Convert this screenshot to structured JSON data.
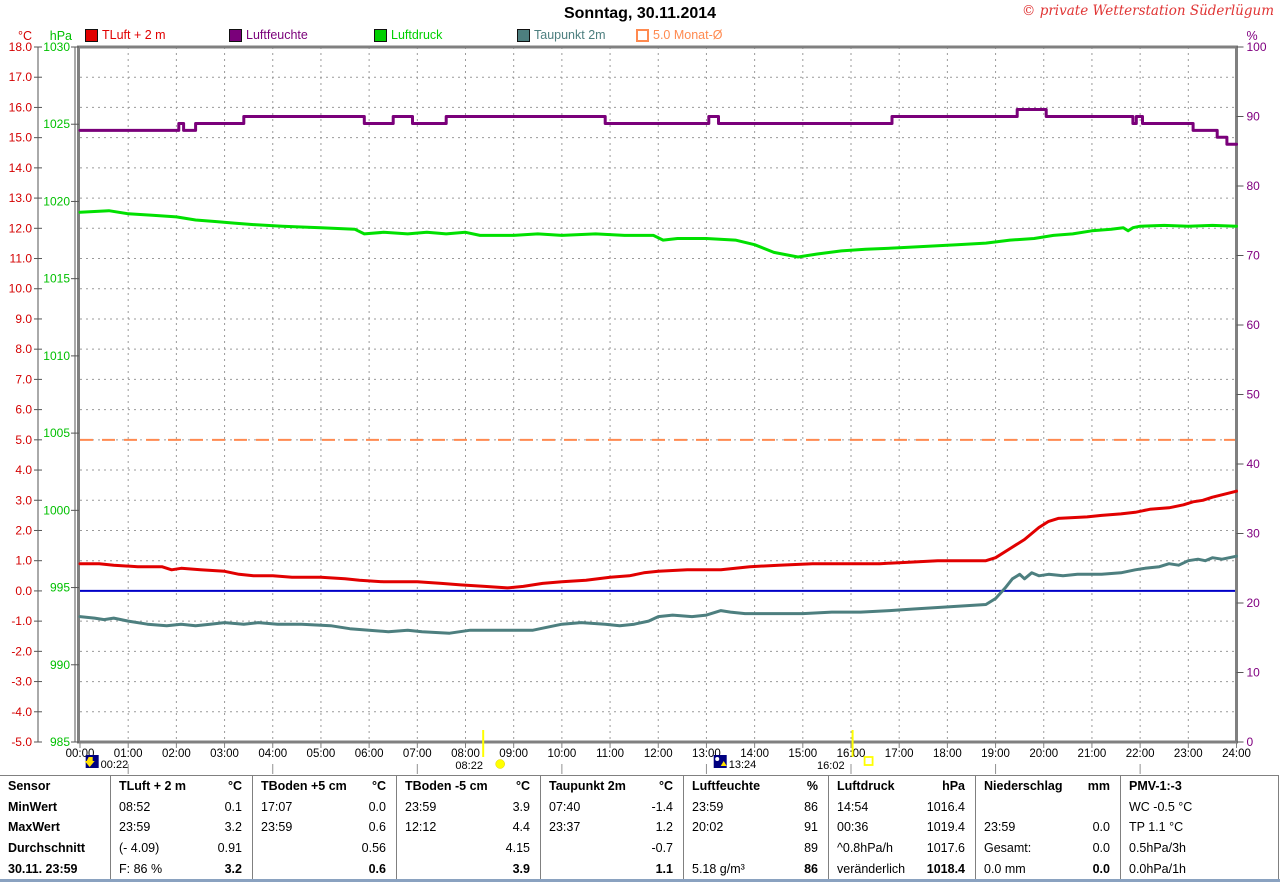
{
  "header": {
    "title": "Sonntag, 30.11.2014",
    "copyright": "© private Wetterstation Süderlügum"
  },
  "legend": [
    {
      "label": "TLuft + 2 m",
      "color": "#e10000",
      "swatch": "filled"
    },
    {
      "label": "Luftfeuchte",
      "color": "#7a007a",
      "swatch": "filled"
    },
    {
      "label": "Luftdruck",
      "color": "#00d000",
      "swatch": "filled"
    },
    {
      "label": "Taupunkt 2m",
      "color": "#4d7f7f",
      "swatch": "filled"
    },
    {
      "label": "5.0 Monat-Ø",
      "color": "#ff8a50",
      "swatch": "hollow"
    }
  ],
  "chart_data": {
    "type": "line",
    "x_axis": {
      "min": 0,
      "max": 24,
      "step_hours": 1,
      "labels": [
        "00:00",
        "01:00",
        "02:00",
        "03:00",
        "04:00",
        "05:00",
        "06:00",
        "07:00",
        "08:00",
        "09:00",
        "10:00",
        "11:00",
        "12:00",
        "13:00",
        "14:00",
        "15:00",
        "16:00",
        "17:00",
        "18:00",
        "19:00",
        "20:00",
        "21:00",
        "22:00",
        "23:00",
        "24:00"
      ]
    },
    "y_axis_celsius": {
      "label": "°C",
      "min": -5,
      "max": 18,
      "step": 1,
      "color": "#d40000"
    },
    "y_axis_hpa": {
      "label": "hPa",
      "min": 985,
      "max": 1030,
      "step": 5,
      "color": "#00c000"
    },
    "y_axis_percent": {
      "label": "%",
      "min": 0,
      "max": 100,
      "step": 10,
      "color": "#800080"
    },
    "grid": {
      "on": true,
      "color": "#9a9a9a"
    },
    "reference_lines": [
      {
        "name": "zero-line",
        "axis": "c",
        "value": 0.0,
        "color": "#0000c8",
        "style": "solid"
      },
      {
        "name": "monthly-average",
        "axis": "c",
        "value": 5.0,
        "color": "#ff8a50",
        "style": "dashed",
        "label": "5.0 Monat-Ø"
      }
    ],
    "series": [
      {
        "name": "Luftdruck",
        "axis": "hpa",
        "color": "#00e000",
        "interp": "linear",
        "points": [
          [
            0,
            1019.3
          ],
          [
            0.6,
            1019.4
          ],
          [
            1,
            1019.2
          ],
          [
            1.5,
            1019.1
          ],
          [
            2,
            1019.0
          ],
          [
            2.4,
            1018.8
          ],
          [
            2.8,
            1018.7
          ],
          [
            3.2,
            1018.6
          ],
          [
            3.6,
            1018.5
          ],
          [
            4.2,
            1018.4
          ],
          [
            5,
            1018.3
          ],
          [
            5.7,
            1018.2
          ],
          [
            5.9,
            1017.9
          ],
          [
            6.3,
            1018.0
          ],
          [
            6.8,
            1017.9
          ],
          [
            7.2,
            1018.0
          ],
          [
            7.6,
            1017.9
          ],
          [
            8,
            1018.0
          ],
          [
            8.3,
            1017.8
          ],
          [
            9,
            1017.8
          ],
          [
            9.5,
            1017.9
          ],
          [
            10,
            1017.8
          ],
          [
            10.7,
            1017.9
          ],
          [
            11.3,
            1017.8
          ],
          [
            11.9,
            1017.8
          ],
          [
            12.1,
            1017.5
          ],
          [
            12.4,
            1017.6
          ],
          [
            13,
            1017.6
          ],
          [
            13.6,
            1017.5
          ],
          [
            14,
            1017.2
          ],
          [
            14.4,
            1016.7
          ],
          [
            14.9,
            1016.4
          ],
          [
            15.3,
            1016.6
          ],
          [
            15.8,
            1016.8
          ],
          [
            16.3,
            1016.9
          ],
          [
            17,
            1017.0
          ],
          [
            17.6,
            1017.1
          ],
          [
            18.2,
            1017.2
          ],
          [
            18.8,
            1017.3
          ],
          [
            19.3,
            1017.5
          ],
          [
            19.8,
            1017.6
          ],
          [
            20.2,
            1017.8
          ],
          [
            20.6,
            1017.9
          ],
          [
            21,
            1018.1
          ],
          [
            21.4,
            1018.2
          ],
          [
            21.65,
            1018.3
          ],
          [
            21.75,
            1018.1
          ],
          [
            21.85,
            1018.3
          ],
          [
            22,
            1018.4
          ],
          [
            22.5,
            1018.45
          ],
          [
            23,
            1018.4
          ],
          [
            23.5,
            1018.45
          ],
          [
            24,
            1018.4
          ]
        ]
      },
      {
        "name": "Luftfeuchte",
        "axis": "pct",
        "color": "#7a007a",
        "interp": "step",
        "points": [
          [
            0,
            88
          ],
          [
            2.0,
            88
          ],
          [
            2.05,
            89
          ],
          [
            2.15,
            88
          ],
          [
            2.4,
            89
          ],
          [
            3.4,
            90
          ],
          [
            5.9,
            89
          ],
          [
            6.5,
            90
          ],
          [
            6.9,
            89
          ],
          [
            7.6,
            90
          ],
          [
            10.9,
            89
          ],
          [
            13.05,
            90
          ],
          [
            13.25,
            89
          ],
          [
            16.85,
            90
          ],
          [
            19.45,
            91
          ],
          [
            20.05,
            90
          ],
          [
            21.85,
            89
          ],
          [
            21.92,
            90
          ],
          [
            22.05,
            89
          ],
          [
            23.1,
            88
          ],
          [
            23.6,
            87
          ],
          [
            23.8,
            86
          ],
          [
            24,
            86
          ]
        ]
      },
      {
        "name": "TLuft + 2 m",
        "axis": "c",
        "color": "#e10000",
        "interp": "linear",
        "points": [
          [
            0,
            0.9
          ],
          [
            0.4,
            0.9
          ],
          [
            0.7,
            0.85
          ],
          [
            1.2,
            0.8
          ],
          [
            1.7,
            0.8
          ],
          [
            1.9,
            0.7
          ],
          [
            2.1,
            0.75
          ],
          [
            2.5,
            0.7
          ],
          [
            3,
            0.65
          ],
          [
            3.3,
            0.55
          ],
          [
            3.6,
            0.5
          ],
          [
            4,
            0.5
          ],
          [
            4.4,
            0.45
          ],
          [
            5,
            0.45
          ],
          [
            5.5,
            0.4
          ],
          [
            5.8,
            0.35
          ],
          [
            6.3,
            0.3
          ],
          [
            7,
            0.3
          ],
          [
            7.5,
            0.25
          ],
          [
            7.9,
            0.2
          ],
          [
            8.4,
            0.15
          ],
          [
            8.87,
            0.1
          ],
          [
            9.2,
            0.15
          ],
          [
            9.6,
            0.25
          ],
          [
            10,
            0.3
          ],
          [
            10.5,
            0.35
          ],
          [
            11,
            0.45
          ],
          [
            11.4,
            0.5
          ],
          [
            11.7,
            0.6
          ],
          [
            12,
            0.65
          ],
          [
            12.6,
            0.7
          ],
          [
            13.3,
            0.7
          ],
          [
            13.6,
            0.75
          ],
          [
            13.9,
            0.8
          ],
          [
            14.5,
            0.85
          ],
          [
            15.2,
            0.9
          ],
          [
            16,
            0.9
          ],
          [
            16.6,
            0.9
          ],
          [
            17.2,
            0.95
          ],
          [
            17.8,
            1.0
          ],
          [
            18.8,
            1.0
          ],
          [
            19,
            1.1
          ],
          [
            19.3,
            1.4
          ],
          [
            19.6,
            1.7
          ],
          [
            19.9,
            2.1
          ],
          [
            20.1,
            2.3
          ],
          [
            20.3,
            2.4
          ],
          [
            20.9,
            2.45
          ],
          [
            21.2,
            2.5
          ],
          [
            21.6,
            2.55
          ],
          [
            21.9,
            2.6
          ],
          [
            22.2,
            2.7
          ],
          [
            22.6,
            2.75
          ],
          [
            22.9,
            2.85
          ],
          [
            23.1,
            2.95
          ],
          [
            23.3,
            3.0
          ],
          [
            23.5,
            3.1
          ],
          [
            23.75,
            3.2
          ],
          [
            24,
            3.3
          ]
        ]
      },
      {
        "name": "Taupunkt 2m",
        "axis": "c",
        "color": "#4d7f7f",
        "interp": "linear",
        "points": [
          [
            0,
            -0.85
          ],
          [
            0.3,
            -0.9
          ],
          [
            0.5,
            -0.95
          ],
          [
            0.7,
            -0.9
          ],
          [
            1,
            -1.0
          ],
          [
            1.4,
            -1.1
          ],
          [
            1.8,
            -1.15
          ],
          [
            2.1,
            -1.1
          ],
          [
            2.4,
            -1.15
          ],
          [
            2.7,
            -1.1
          ],
          [
            3,
            -1.05
          ],
          [
            3.4,
            -1.1
          ],
          [
            3.7,
            -1.05
          ],
          [
            4.1,
            -1.1
          ],
          [
            4.6,
            -1.1
          ],
          [
            5.2,
            -1.15
          ],
          [
            5.6,
            -1.25
          ],
          [
            6,
            -1.3
          ],
          [
            6.4,
            -1.35
          ],
          [
            6.8,
            -1.3
          ],
          [
            7.1,
            -1.35
          ],
          [
            7.67,
            -1.4
          ],
          [
            8.1,
            -1.3
          ],
          [
            8.9,
            -1.3
          ],
          [
            9.4,
            -1.3
          ],
          [
            9.7,
            -1.2
          ],
          [
            10,
            -1.1
          ],
          [
            10.4,
            -1.05
          ],
          [
            10.9,
            -1.1
          ],
          [
            11.2,
            -1.15
          ],
          [
            11.5,
            -1.1
          ],
          [
            11.8,
            -1.0
          ],
          [
            12,
            -0.85
          ],
          [
            12.3,
            -0.8
          ],
          [
            12.7,
            -0.85
          ],
          [
            13,
            -0.8
          ],
          [
            13.3,
            -0.65
          ],
          [
            13.5,
            -0.7
          ],
          [
            13.8,
            -0.75
          ],
          [
            14.3,
            -0.75
          ],
          [
            15,
            -0.75
          ],
          [
            15.6,
            -0.7
          ],
          [
            16.2,
            -0.7
          ],
          [
            16.8,
            -0.65
          ],
          [
            17.3,
            -0.6
          ],
          [
            17.8,
            -0.55
          ],
          [
            18.3,
            -0.5
          ],
          [
            18.8,
            -0.45
          ],
          [
            19,
            -0.25
          ],
          [
            19.2,
            0.1
          ],
          [
            19.35,
            0.4
          ],
          [
            19.5,
            0.55
          ],
          [
            19.6,
            0.4
          ],
          [
            19.75,
            0.6
          ],
          [
            19.9,
            0.5
          ],
          [
            20.1,
            0.55
          ],
          [
            20.4,
            0.5
          ],
          [
            20.7,
            0.55
          ],
          [
            21.2,
            0.55
          ],
          [
            21.6,
            0.6
          ],
          [
            21.9,
            0.7
          ],
          [
            22.1,
            0.75
          ],
          [
            22.4,
            0.8
          ],
          [
            22.6,
            0.9
          ],
          [
            22.8,
            0.85
          ],
          [
            23,
            1.0
          ],
          [
            23.2,
            1.05
          ],
          [
            23.35,
            1.0
          ],
          [
            23.5,
            1.1
          ],
          [
            23.7,
            1.05
          ],
          [
            23.85,
            1.1
          ],
          [
            24,
            1.15
          ]
        ]
      }
    ],
    "sun_moon_markers": [
      {
        "time": "00:22",
        "hours": 0.367,
        "type": "moon-down"
      },
      {
        "time": "08:22",
        "hours": 8.367,
        "type": "sun-rise"
      },
      {
        "time": "13:24",
        "hours": 13.4,
        "type": "moon-up"
      },
      {
        "time": "16:02",
        "hours": 16.033,
        "type": "sun-set"
      }
    ]
  },
  "table": {
    "columns": [
      {
        "name": "Sensor",
        "unit": ""
      },
      {
        "name": "TLuft + 2 m",
        "unit": "°C"
      },
      {
        "name": "TBoden +5 cm",
        "unit": "°C"
      },
      {
        "name": "TBoden -5 cm",
        "unit": "°C"
      },
      {
        "name": "Taupunkt 2m",
        "unit": "°C"
      },
      {
        "name": "Luftfeuchte",
        "unit": "%"
      },
      {
        "name": "Luftdruck",
        "unit": "hPa"
      },
      {
        "name": "Niederschlag",
        "unit": "mm"
      },
      {
        "name": "PMV-1:-3",
        "unit": ""
      }
    ],
    "rows": [
      {
        "label": "MinWert",
        "bold_values": false,
        "cells": [
          [
            "08:52",
            "0.1"
          ],
          [
            "17:07",
            "0.0"
          ],
          [
            "23:59",
            "3.9"
          ],
          [
            "07:40",
            "-1.4"
          ],
          [
            "23:59",
            "86"
          ],
          [
            "14:54",
            "1016.4"
          ],
          [
            "",
            ""
          ],
          [
            "WC -0.5 °C",
            ""
          ]
        ]
      },
      {
        "label": "MaxWert",
        "bold_values": false,
        "cells": [
          [
            "23:59",
            "3.2"
          ],
          [
            "23:59",
            "0.6"
          ],
          [
            "12:12",
            "4.4"
          ],
          [
            "23:37",
            "1.2"
          ],
          [
            "20:02",
            "91"
          ],
          [
            "00:36",
            "1019.4"
          ],
          [
            "23:59",
            "0.0"
          ],
          [
            "TP 1.1 °C",
            ""
          ]
        ]
      },
      {
        "label": "Durchschnitt",
        "bold_values": false,
        "cells": [
          [
            "(- 4.09)",
            "0.91"
          ],
          [
            "",
            "0.56"
          ],
          [
            "",
            "4.15"
          ],
          [
            "",
            "-0.7"
          ],
          [
            "",
            "89"
          ],
          [
            "^0.8hPa/h",
            "1017.6"
          ],
          [
            "Gesamt:",
            "0.0"
          ],
          [
            "0.5hPa/3h",
            ""
          ]
        ]
      },
      {
        "label": "30.11. 23:59",
        "bold_values": true,
        "cells": [
          [
            "F: 86 %",
            "3.2"
          ],
          [
            "",
            "0.6"
          ],
          [
            "",
            "3.9"
          ],
          [
            "",
            "1.1"
          ],
          [
            "5.18 g/m³",
            "86"
          ],
          [
            "veränderlich",
            "1018.4"
          ],
          [
            "0.0 mm",
            "0.0"
          ],
          [
            "0.0hPa/1h",
            ""
          ]
        ]
      }
    ]
  }
}
